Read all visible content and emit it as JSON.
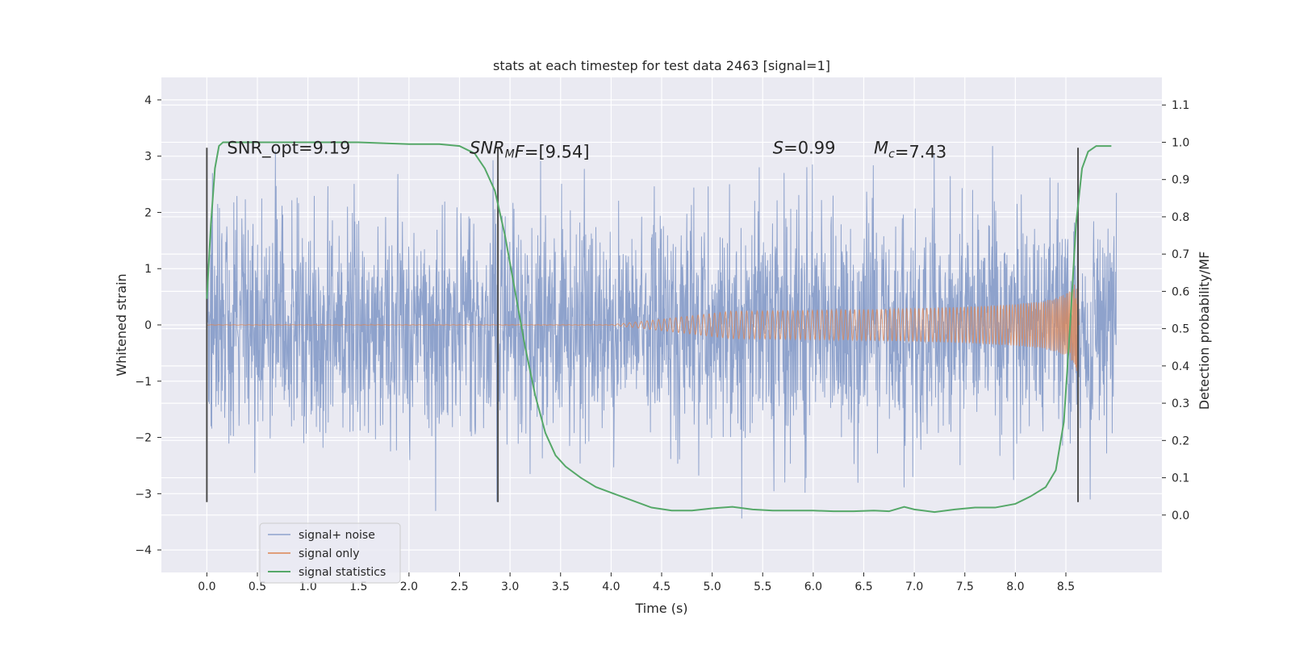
{
  "chart_data": {
    "type": "line",
    "title": "stats at each timestep for test data 2463 [signal=1]",
    "xlabel": "Time (s)",
    "ylabel": "Whitened strain",
    "y2label": "Detection probability/MF",
    "xlim": [
      -0.45,
      9.45
    ],
    "ylim": [
      -4.4,
      4.4
    ],
    "y2lim": [
      -0.154,
      1.174
    ],
    "x_ticks": [
      0.0,
      0.5,
      1.0,
      1.5,
      2.0,
      2.5,
      3.0,
      3.5,
      4.0,
      4.5,
      5.0,
      5.5,
      6.0,
      6.5,
      7.0,
      7.5,
      8.0,
      8.5
    ],
    "x_tick_labels": [
      "0.0",
      "0.5",
      "1.0",
      "1.5",
      "2.0",
      "2.5",
      "3.0",
      "3.5",
      "4.0",
      "4.5",
      "5.0",
      "5.5",
      "6.0",
      "6.5",
      "7.0",
      "7.5",
      "8.0",
      "8.5"
    ],
    "y_ticks": [
      -4,
      -3,
      -2,
      -1,
      0,
      1,
      2,
      3,
      4
    ],
    "y_tick_labels": [
      "−4",
      "−3",
      "−2",
      "−1",
      "0",
      "1",
      "2",
      "3",
      "4"
    ],
    "y2_ticks": [
      0.0,
      0.1,
      0.2,
      0.3,
      0.4,
      0.5,
      0.6,
      0.7,
      0.8,
      0.9,
      1.0,
      1.1
    ],
    "y2_tick_labels": [
      "0.0",
      "0.1",
      "0.2",
      "0.3",
      "0.4",
      "0.5",
      "0.6",
      "0.7",
      "0.8",
      "0.9",
      "1.0",
      "1.1"
    ],
    "grid": true,
    "legend_position": "lower-left",
    "annotations": [
      {
        "text": "SNR_opt=9.19",
        "x": 0.2,
        "y": 3.1,
        "italic": false
      },
      {
        "text": "SNR_MF=[9.54]",
        "parts": [
          {
            "t": "SNR",
            "i": true
          },
          {
            "t": "M",
            "i": true,
            "sub": true
          },
          {
            "t": "F",
            "i": true
          },
          {
            "t": "=[9.54]",
            "i": false
          }
        ],
        "x": 2.6,
        "y": 3.1
      },
      {
        "text": "S=0.99",
        "parts": [
          {
            "t": "S",
            "i": true
          },
          {
            "t": "=0.99",
            "i": false
          }
        ],
        "x": 5.6,
        "y": 3.1
      },
      {
        "text": "Mc=7.43",
        "parts": [
          {
            "t": "M",
            "i": true
          },
          {
            "t": "c",
            "i": true,
            "sub": true
          },
          {
            "t": "=7.43",
            "i": false
          }
        ],
        "x": 6.6,
        "y": 3.1
      }
    ],
    "vlines": [
      0.0,
      2.88,
      8.62
    ],
    "vline_range": [
      -3.15,
      3.15
    ],
    "noise": {
      "t_start": 0.0,
      "t_end": 9.0,
      "amplitude_sigma": 1.0
    },
    "signal": {
      "t_merger": 8.63,
      "peak_amplitude": 0.95
    },
    "series": [
      {
        "name": "signal+ noise",
        "color": "#8ea2cc",
        "axis": "left",
        "kind": "noise"
      },
      {
        "name": "signal only",
        "color": "#dd8452",
        "axis": "left",
        "kind": "chirp"
      },
      {
        "name": "signal statistics",
        "color": "#55a868",
        "axis": "right",
        "kind": "line",
        "x": [
          0.0,
          0.04,
          0.08,
          0.12,
          0.16,
          0.25,
          0.5,
          1.0,
          1.5,
          2.0,
          2.3,
          2.5,
          2.65,
          2.75,
          2.85,
          2.95,
          3.05,
          3.15,
          3.25,
          3.35,
          3.45,
          3.55,
          3.7,
          3.85,
          4.0,
          4.2,
          4.4,
          4.6,
          4.8,
          5.0,
          5.2,
          5.4,
          5.6,
          5.8,
          6.0,
          6.2,
          6.4,
          6.6,
          6.75,
          6.9,
          7.0,
          7.2,
          7.4,
          7.6,
          7.8,
          8.0,
          8.15,
          8.3,
          8.4,
          8.48,
          8.54,
          8.6,
          8.66,
          8.72,
          8.8,
          8.9,
          8.95
        ],
        "y": [
          0.58,
          0.78,
          0.93,
          0.99,
          1.0,
          1.0,
          1.0,
          1.0,
          1.0,
          0.995,
          0.995,
          0.99,
          0.97,
          0.93,
          0.87,
          0.75,
          0.6,
          0.45,
          0.32,
          0.22,
          0.16,
          0.13,
          0.1,
          0.075,
          0.06,
          0.04,
          0.02,
          0.012,
          0.012,
          0.018,
          0.022,
          0.015,
          0.012,
          0.012,
          0.012,
          0.01,
          0.01,
          0.012,
          0.01,
          0.022,
          0.015,
          0.008,
          0.015,
          0.02,
          0.02,
          0.03,
          0.05,
          0.075,
          0.12,
          0.25,
          0.5,
          0.78,
          0.93,
          0.975,
          0.99,
          0.99,
          0.99
        ]
      }
    ]
  }
}
